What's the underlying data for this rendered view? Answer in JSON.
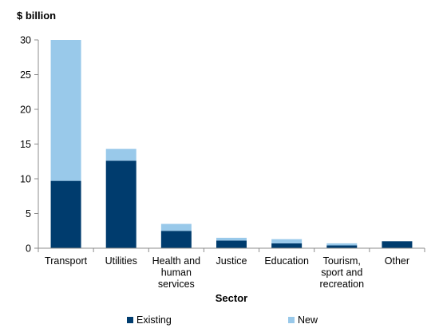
{
  "chart_data": {
    "type": "bar",
    "stacked": true,
    "ylabel": "$ billion",
    "xlabel": "Sector",
    "ylim": [
      0,
      30
    ],
    "yticks": [
      0,
      5,
      10,
      15,
      20,
      25,
      30
    ],
    "grid": false,
    "legend_position": "bottom",
    "categories": [
      [
        "Transport"
      ],
      [
        "Utilities"
      ],
      [
        "Health and",
        "human",
        "services"
      ],
      [
        "Justice"
      ],
      [
        "Education"
      ],
      [
        "Tourism,",
        "sport and",
        "recreation"
      ],
      [
        "Other"
      ]
    ],
    "series": [
      {
        "name": "Existing",
        "color": "#003c6e",
        "values": [
          9.7,
          12.6,
          2.5,
          1.1,
          0.7,
          0.4,
          1.0
        ]
      },
      {
        "name": "New",
        "color": "#99c9ea",
        "values": [
          20.3,
          1.7,
          1.0,
          0.4,
          0.6,
          0.3,
          0.0
        ]
      }
    ]
  }
}
